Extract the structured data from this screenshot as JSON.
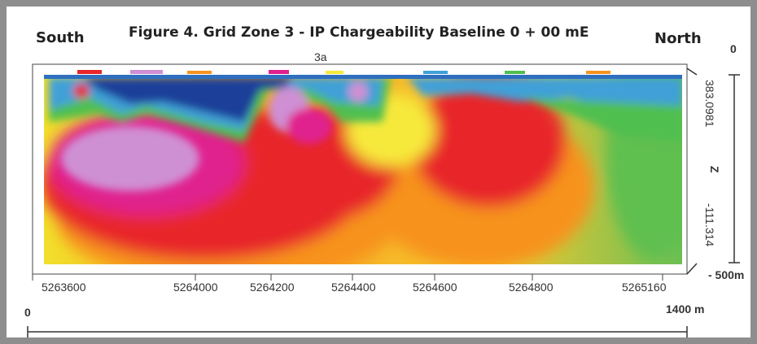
{
  "chart_data": {
    "type": "heatmap",
    "title": "Figure 4. Grid Zone 3 - IP Chargeability Baseline 0 + 00 mE",
    "left_header": "South",
    "right_header": "North",
    "top_label": "3a",
    "x_ticks": [
      "5263600",
      "5264000",
      "5264200",
      "5264400",
      "5264600",
      "5264800",
      "5265160"
    ],
    "z_ticks": [
      "383.0981",
      "-111.314"
    ],
    "z_axis_label": "Z",
    "depth_top": "0",
    "depth_bottom": "- 500m",
    "scale_start": "0",
    "scale_end": "1400 m",
    "colors": [
      "#1f3f9a",
      "#3fa0d8",
      "#4fbf4f",
      "#f7e93a",
      "#f7931e",
      "#e8262a",
      "#e0208e",
      "#cf8fd3"
    ]
  }
}
